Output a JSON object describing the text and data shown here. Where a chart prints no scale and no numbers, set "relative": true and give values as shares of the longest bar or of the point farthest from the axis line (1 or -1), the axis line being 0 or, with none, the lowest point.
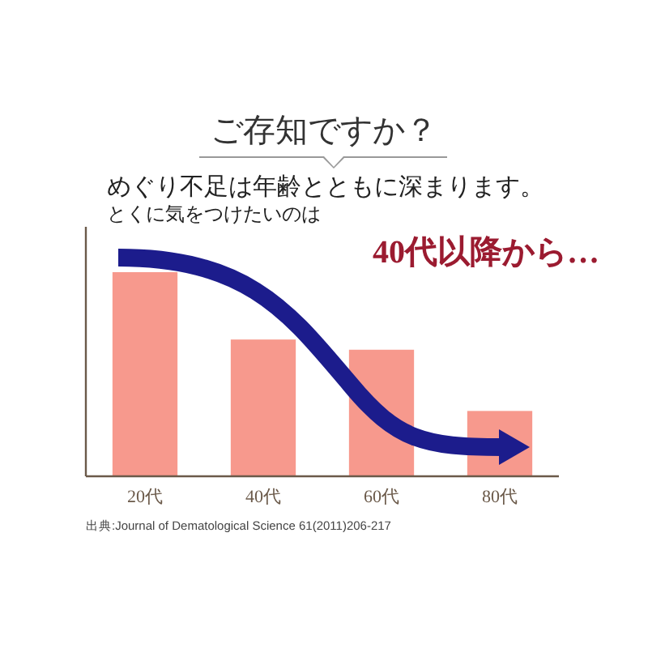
{
  "chart_data": {
    "type": "bar",
    "title": "ご存知ですか？",
    "subtitle": "めぐり不足は年齢とともに深まります。",
    "annotations": [
      "とくに気をつけたいのは",
      "40代以降から…",
      "出典:Journal of Dematological Science 61(2011)206-217"
    ],
    "categories": [
      "20代",
      "40代",
      "60代",
      "80代"
    ],
    "values": [
      1,
      0.67,
      0.62,
      0.32
    ],
    "color": "#f7998d",
    "relative": true
  }
}
